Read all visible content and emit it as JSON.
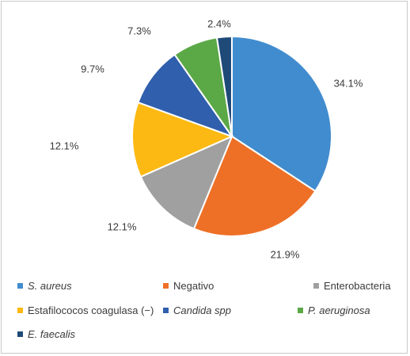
{
  "chart_data": {
    "type": "pie",
    "title": "",
    "start_angle_deg": 0,
    "direction": "clockwise",
    "slices": [
      {
        "label": "S. aureus",
        "value": 34.1,
        "display": "34.1%",
        "color": "#418cce",
        "italic": true
      },
      {
        "label": "Negativo",
        "value": 21.9,
        "display": "21.9%",
        "color": "#ee7026",
        "italic": false
      },
      {
        "label": "Enterobacteria",
        "value": 12.1,
        "display": "12.1%",
        "color": "#a0a0a0",
        "italic": false
      },
      {
        "label": "Estafilococos coagulasa (−)",
        "value": 12.1,
        "display": "12.1%",
        "color": "#fcb913",
        "italic": false
      },
      {
        "label": "Candida spp",
        "value": 9.7,
        "display": "9.7%",
        "color": "#2f5fad",
        "italic": true
      },
      {
        "label": "P. aeruginosa",
        "value": 7.3,
        "display": "7.3%",
        "color": "#5ba847",
        "italic": true
      },
      {
        "label": "E. faecalis",
        "value": 2.4,
        "display": "2.4%",
        "color": "#1f4a78",
        "italic": true
      }
    ],
    "legend": {
      "placement": "bottom",
      "items": [
        "S. aureus",
        "Negativo",
        "Enterobacteria",
        "Estafilococos coagulasa (−)",
        "Candida spp",
        "P. aeruginosa",
        "E. faecalis"
      ]
    }
  }
}
